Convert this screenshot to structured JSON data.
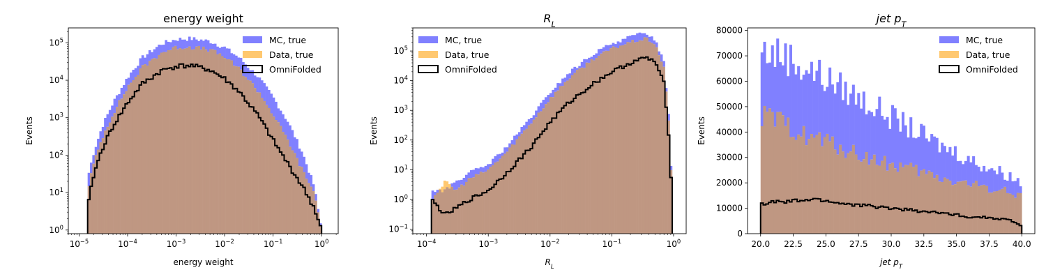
{
  "figure": {
    "series_colors": {
      "mc": "#8080ff",
      "data": "#ffc870",
      "overlap": "#bf9782",
      "omnifolded": "#000000"
    },
    "legend_labels": [
      "MC, true",
      "Data, true",
      "OmniFolded"
    ]
  },
  "chart_data": [
    {
      "type": "bar",
      "histogram": true,
      "title": "energy weight",
      "xlabel": "energy weight",
      "ylabel": "Events",
      "xscale": "log",
      "yscale": "log",
      "xlim": [
        6e-06,
        2.2
      ],
      "ylim": [
        0.8,
        250000.0
      ],
      "xticks": [
        {
          "value": 1e-05,
          "base": "10",
          "exp": "−5"
        },
        {
          "value": 0.0001,
          "base": "10",
          "exp": "−4"
        },
        {
          "value": 0.001,
          "base": "10",
          "exp": "−3"
        },
        {
          "value": 0.01,
          "base": "10",
          "exp": "−2"
        },
        {
          "value": 0.1,
          "base": "10",
          "exp": "−1"
        },
        {
          "value": 1,
          "base": "10",
          "exp": "0"
        }
      ],
      "yticks": [
        {
          "value": 1,
          "base": "10",
          "exp": "0"
        },
        {
          "value": 10,
          "base": "10",
          "exp": "1"
        },
        {
          "value": 100,
          "base": "10",
          "exp": "2"
        },
        {
          "value": 1000,
          "base": "10",
          "exp": "3"
        },
        {
          "value": 10000,
          "base": "10",
          "exp": "4"
        },
        {
          "value": 100000,
          "base": "10",
          "exp": "5"
        }
      ],
      "legend_position": "top-right",
      "series": [
        {
          "name": "MC, true",
          "x": [
            1.5e-05,
            2e-05,
            3e-05,
            5e-05,
            0.0001,
            0.0002,
            0.0005,
            0.001,
            0.002,
            0.005,
            0.01,
            0.02,
            0.05,
            0.1,
            0.2,
            0.4,
            0.7,
            1.0
          ],
          "values": [
            25,
            120,
            600,
            2500,
            12000,
            40000,
            95000,
            125000,
            130000,
            110000,
            75000,
            40000,
            12000,
            3500,
            800,
            120,
            15,
            1
          ]
        },
        {
          "name": "Data, true",
          "x": [
            1.5e-05,
            2e-05,
            3e-05,
            5e-05,
            0.0001,
            0.0002,
            0.0005,
            0.001,
            0.002,
            0.005,
            0.01,
            0.02,
            0.05,
            0.1,
            0.2,
            0.4,
            0.7,
            1.0
          ],
          "values": [
            12,
            60,
            300,
            1300,
            6500,
            22000,
            55000,
            75000,
            78000,
            65000,
            42000,
            20000,
            5000,
            1200,
            250,
            40,
            10,
            1
          ]
        },
        {
          "name": "OmniFolded",
          "x": [
            1.5e-05,
            2e-05,
            3e-05,
            5e-05,
            0.0001,
            0.0002,
            0.0005,
            0.001,
            0.002,
            0.005,
            0.01,
            0.02,
            0.05,
            0.1,
            0.2,
            0.4,
            0.7,
            1.0
          ],
          "values": [
            4,
            30,
            150,
            600,
            2500,
            8000,
            18000,
            24000,
            25000,
            19000,
            11000,
            5000,
            1100,
            250,
            60,
            15,
            4,
            1
          ]
        }
      ]
    },
    {
      "type": "bar",
      "histogram": true,
      "title": {
        "base": "R",
        "sub": "L"
      },
      "xlabel": {
        "base": "R",
        "sub": "L"
      },
      "ylabel": "Events",
      "xscale": "log",
      "yscale": "log",
      "xlim": [
        6e-05,
        1.6
      ],
      "ylim": [
        0.07,
        600000.0
      ],
      "xticks": [
        {
          "value": 0.0001,
          "base": "10",
          "exp": "−4"
        },
        {
          "value": 0.001,
          "base": "10",
          "exp": "−3"
        },
        {
          "value": 0.01,
          "base": "10",
          "exp": "−2"
        },
        {
          "value": 0.1,
          "base": "10",
          "exp": "−1"
        },
        {
          "value": 1,
          "base": "10",
          "exp": "0"
        }
      ],
      "yticks": [
        {
          "value": 0.1,
          "base": "10",
          "exp": "−1"
        },
        {
          "value": 1,
          "base": "10",
          "exp": "0"
        },
        {
          "value": 10,
          "base": "10",
          "exp": "1"
        },
        {
          "value": 100,
          "base": "10",
          "exp": "2"
        },
        {
          "value": 1000,
          "base": "10",
          "exp": "3"
        },
        {
          "value": 10000,
          "base": "10",
          "exp": "4"
        },
        {
          "value": 100000,
          "base": "10",
          "exp": "5"
        }
      ],
      "legend_position": "top-left",
      "series": [
        {
          "name": "MC, true",
          "x": [
            0.00012,
            0.0002,
            0.0003,
            0.0005,
            0.001,
            0.002,
            0.005,
            0.01,
            0.02,
            0.05,
            0.1,
            0.2,
            0.35,
            0.5,
            0.7,
            0.85,
            0.95
          ],
          "values": [
            2,
            2,
            4,
            8,
            15,
            60,
            600,
            4000,
            18000,
            80000,
            180000,
            300000,
            420000,
            250000,
            40000,
            500,
            1
          ]
        },
        {
          "name": "Data, true",
          "x": [
            0.00012,
            0.0002,
            0.0003,
            0.0005,
            0.001,
            0.002,
            0.005,
            0.01,
            0.02,
            0.05,
            0.1,
            0.2,
            0.35,
            0.5,
            0.7,
            0.85,
            0.95
          ],
          "values": [
            1,
            4,
            2,
            5,
            10,
            40,
            400,
            2500,
            12000,
            55000,
            120000,
            200000,
            260000,
            180000,
            25000,
            300,
            1
          ]
        },
        {
          "name": "OmniFolded",
          "x": [
            0.00012,
            0.0002,
            0.0003,
            0.0005,
            0.001,
            0.002,
            0.005,
            0.01,
            0.02,
            0.05,
            0.1,
            0.2,
            0.35,
            0.5,
            0.7,
            0.85,
            0.95
          ],
          "values": [
            1,
            0.3,
            0.5,
            1,
            2,
            8,
            60,
            400,
            1800,
            8000,
            20000,
            40000,
            60000,
            45000,
            8000,
            100,
            1
          ]
        }
      ]
    },
    {
      "type": "bar",
      "histogram": true,
      "title": {
        "base": "jet p",
        "sub": "T"
      },
      "xlabel": {
        "base": "jet p",
        "sub": "T"
      },
      "ylabel": "Events",
      "xscale": "linear",
      "yscale": "linear",
      "xlim": [
        19,
        41
      ],
      "ylim": [
        0,
        81000
      ],
      "xticks": [
        20.0,
        22.5,
        25.0,
        27.5,
        30.0,
        32.5,
        35.0,
        37.5,
        40.0
      ],
      "yticks": [
        0,
        10000,
        20000,
        30000,
        40000,
        50000,
        60000,
        70000,
        80000
      ],
      "legend_position": "top-right",
      "series": [
        {
          "name": "MC, true",
          "x": [
            20,
            21,
            22,
            23,
            24,
            25,
            26,
            27,
            28,
            29,
            30,
            31,
            32,
            33,
            34,
            35,
            36,
            37,
            38,
            39,
            40
          ],
          "values": [
            72000,
            71000,
            70000,
            66000,
            64000,
            61000,
            58000,
            55000,
            52000,
            49000,
            46000,
            43000,
            40000,
            37000,
            34000,
            32000,
            29000,
            27000,
            25000,
            23000,
            20000
          ]
        },
        {
          "name": "Data, true",
          "x": [
            20,
            21,
            22,
            23,
            24,
            25,
            26,
            27,
            28,
            29,
            30,
            31,
            32,
            33,
            34,
            35,
            36,
            37,
            38,
            39,
            40
          ],
          "values": [
            46000,
            45000,
            42000,
            40000,
            38000,
            36000,
            34000,
            32000,
            30000,
            28500,
            27000,
            26000,
            24500,
            23000,
            21500,
            20500,
            19500,
            18500,
            17500,
            16500,
            15000
          ]
        },
        {
          "name": "OmniFolded",
          "x": [
            20,
            21,
            22,
            23,
            24,
            25,
            26,
            27,
            28,
            29,
            30,
            31,
            32,
            33,
            34,
            35,
            36,
            37,
            38,
            39,
            40
          ],
          "values": [
            11500,
            12500,
            12500,
            13000,
            13500,
            13000,
            12000,
            11500,
            11000,
            10500,
            10000,
            9500,
            9000,
            8500,
            8000,
            7500,
            6500,
            6500,
            6000,
            5500,
            3000
          ]
        }
      ]
    }
  ]
}
